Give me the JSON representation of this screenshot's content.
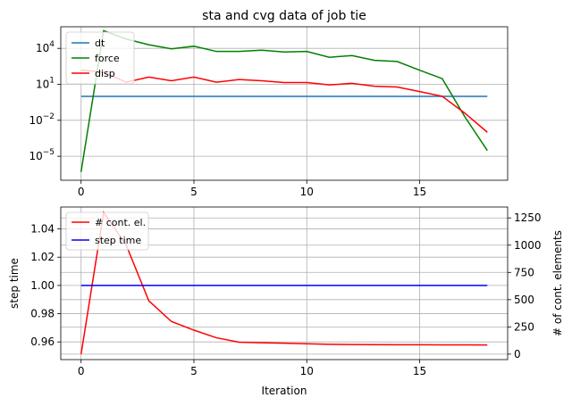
{
  "chart_data": [
    {
      "type": "line",
      "title": "sta and cvg data of job tie",
      "xlabel": "",
      "ylabel": "",
      "yscale": "log",
      "xlim": [
        -0.9,
        18.9
      ],
      "ylim_log10": [
        -7,
        5.8
      ],
      "grid": true,
      "legend_position": "upper-left",
      "xticks": [
        0,
        5,
        10,
        15
      ],
      "xtick_labels": [
        "0",
        "5",
        "10",
        "15"
      ],
      "yticks_exp": [
        -5,
        -2,
        1,
        4
      ],
      "ytick_labels_exp": [
        "−5",
        "−2",
        "1",
        "4"
      ],
      "ytick_base": "10",
      "x": [
        0,
        1,
        2,
        3,
        4,
        5,
        6,
        7,
        8,
        9,
        10,
        11,
        12,
        13,
        14,
        15,
        16,
        17,
        18
      ],
      "series": [
        {
          "name": "dt",
          "color": "#1f77b4",
          "values": [
            1,
            1,
            1,
            1,
            1,
            1,
            1,
            1,
            1,
            1,
            1,
            1,
            1,
            1,
            1,
            1,
            1,
            1,
            1
          ]
        },
        {
          "name": "force",
          "color": "#008000",
          "values": [
            5e-07,
            300000,
            60000,
            20000,
            9000,
            15000,
            5500,
            5500,
            7000,
            5000,
            5500,
            1800,
            2500,
            1000,
            800,
            150,
            30,
            0.02,
            3e-05
          ]
        },
        {
          "name": "disp",
          "color": "#ff0000",
          "values": [
            160,
            100,
            15,
            40,
            20,
            40,
            15,
            25,
            20,
            14,
            14,
            9,
            12,
            7,
            6,
            2.5,
            1,
            0.04,
            0.001
          ]
        }
      ]
    },
    {
      "type": "line",
      "title": "",
      "xlabel": "Iteration",
      "ylabel": "step time",
      "ylabel_right": "# of cont. elements",
      "xlim": [
        -0.9,
        18.9
      ],
      "ylim": [
        0.9475,
        1.0555
      ],
      "ylim_right": [
        -50,
        1350
      ],
      "grid": true,
      "legend_position": "upper-left",
      "xticks": [
        0,
        5,
        10,
        15
      ],
      "xtick_labels": [
        "0",
        "5",
        "10",
        "15"
      ],
      "yticks": [
        0.96,
        0.98,
        1.0,
        1.02,
        1.04
      ],
      "ytick_labels": [
        "0.96",
        "0.98",
        "1.00",
        "1.02",
        "1.04"
      ],
      "yticks_right": [
        0,
        250,
        500,
        750,
        1000,
        1250
      ],
      "ytick_labels_right": [
        "0",
        "250",
        "500",
        "750",
        "1000",
        "1250"
      ],
      "x": [
        0,
        1,
        2,
        3,
        4,
        5,
        6,
        7,
        8,
        9,
        10,
        11,
        12,
        13,
        14,
        15,
        16,
        17,
        18
      ],
      "series": [
        {
          "name": "# cont. el.",
          "color": "#ff0000",
          "axis": "right",
          "values": [
            0,
            1300,
            1000,
            490,
            300,
            220,
            150,
            110,
            105,
            100,
            95,
            90,
            88,
            87,
            86,
            86,
            85,
            85,
            84
          ]
        },
        {
          "name": "step time",
          "color": "#0000ff",
          "axis": "left",
          "values": [
            1,
            1,
            1,
            1,
            1,
            1,
            1,
            1,
            1,
            1,
            1,
            1,
            1,
            1,
            1,
            1,
            1,
            1,
            1
          ]
        }
      ]
    }
  ]
}
